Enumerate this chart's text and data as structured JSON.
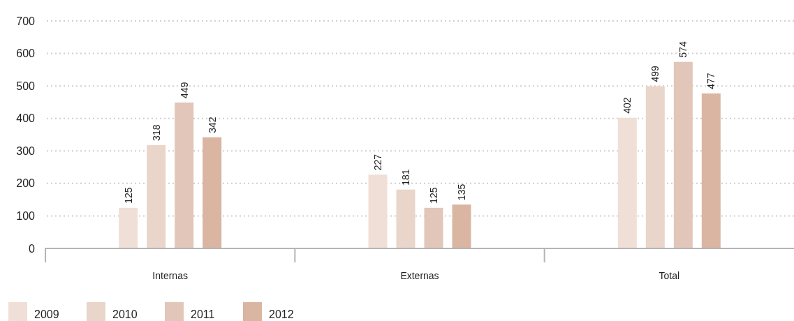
{
  "chart_data": {
    "type": "bar",
    "categories": [
      "Internas",
      "Externas",
      "Total"
    ],
    "series": [
      {
        "name": "2009",
        "color": "#f0dfd6",
        "values": [
          125,
          227,
          402
        ]
      },
      {
        "name": "2010",
        "color": "#e9d5ca",
        "values": [
          318,
          181,
          499
        ]
      },
      {
        "name": "2011",
        "color": "#e2c6b9",
        "values": [
          449,
          125,
          574
        ]
      },
      {
        "name": "2012",
        "color": "#d9b5a2",
        "values": [
          342,
          135,
          477
        ]
      }
    ],
    "ylim": [
      0,
      700
    ],
    "yticks": [
      0,
      100,
      200,
      300,
      400,
      500,
      600,
      700
    ],
    "grid": "y",
    "data_labels": true,
    "legend": "bottom left"
  }
}
